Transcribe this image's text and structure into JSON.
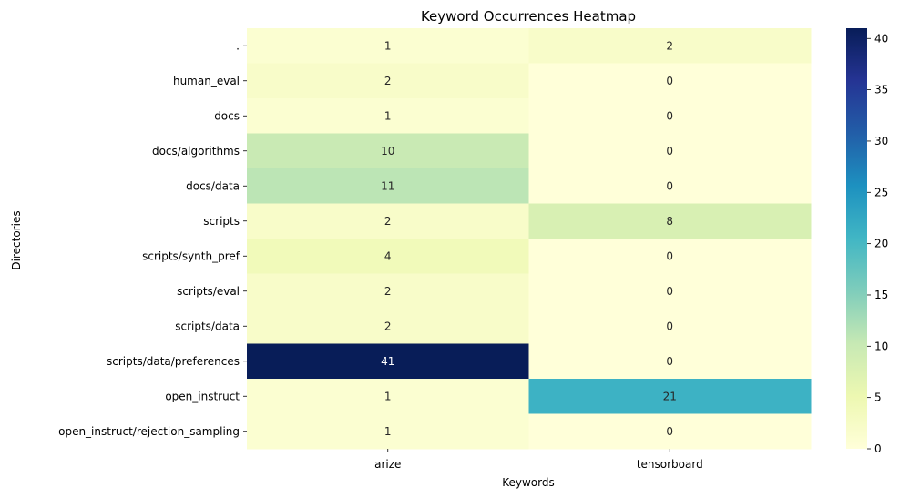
{
  "chart_data": {
    "type": "heatmap",
    "title": "Keyword Occurrences Heatmap",
    "xlabel": "Keywords",
    "ylabel": "Directories",
    "columns": [
      "arize",
      "tensorboard"
    ],
    "rows": [
      ".",
      "human_eval",
      "docs",
      "docs/algorithms",
      "docs/data",
      "scripts",
      "scripts/synth_pref",
      "scripts/eval",
      "scripts/data",
      "scripts/data/preferences",
      "open_instruct",
      "open_instruct/rejection_sampling"
    ],
    "values": [
      [
        1,
        2
      ],
      [
        2,
        0
      ],
      [
        1,
        0
      ],
      [
        10,
        0
      ],
      [
        11,
        0
      ],
      [
        2,
        8
      ],
      [
        4,
        0
      ],
      [
        2,
        0
      ],
      [
        2,
        0
      ],
      [
        41,
        0
      ],
      [
        1,
        21
      ],
      [
        1,
        0
      ]
    ],
    "colorbar": {
      "colormap": "YlGnBu",
      "min": 0,
      "max": 41,
      "ticks": [
        0,
        5,
        10,
        15,
        20,
        25,
        30,
        35,
        40
      ]
    }
  }
}
